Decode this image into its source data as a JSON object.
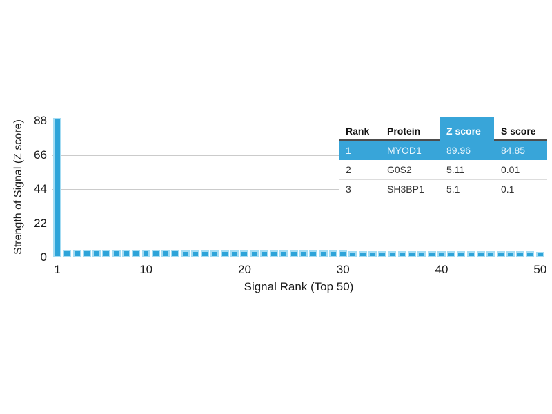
{
  "colors": {
    "accent_blue": "#38a5d9",
    "bar_fill": "#2ea4d9",
    "bar_edge": "#a4dcf3",
    "gridline": "#cbcbcb",
    "header_underline": "#4d4d4d",
    "row_divider": "#dddddd",
    "highlight_text": "#e8f5fc"
  },
  "chart_data": {
    "type": "bar",
    "title": "",
    "xlabel": "Signal Rank (Top 50)",
    "ylabel": "Strength of Signal (Z score)",
    "x_ticks": [
      1,
      10,
      20,
      30,
      40,
      50
    ],
    "y_ticks": [
      0,
      22,
      44,
      66,
      88
    ],
    "ylim": [
      0,
      90
    ],
    "grid": "horizontal",
    "legend": "none",
    "num_bars": 50,
    "values": [
      89.96,
      5.11,
      5.1,
      4.9,
      4.88,
      4.85,
      4.82,
      4.8,
      4.78,
      4.75,
      4.72,
      4.7,
      4.68,
      4.65,
      4.62,
      4.6,
      4.58,
      4.55,
      4.52,
      4.5,
      4.48,
      4.45,
      4.42,
      4.4,
      4.38,
      4.35,
      4.32,
      4.3,
      4.28,
      4.25,
      4.22,
      4.2,
      4.18,
      4.15,
      4.12,
      4.1,
      4.08,
      4.05,
      4.02,
      4.0,
      3.98,
      3.95,
      3.92,
      3.9,
      3.88,
      3.85,
      3.82,
      3.8,
      3.78,
      3.75
    ]
  },
  "table": {
    "headers": [
      "Rank",
      "Protein",
      "Z score",
      "S score"
    ],
    "highlighted_header": "Z score",
    "rows": [
      {
        "rank": "1",
        "protein": "MYOD1",
        "z_score": "89.96",
        "s_score": "84.85",
        "highlighted": true
      },
      {
        "rank": "2",
        "protein": "G0S2",
        "z_score": "5.11",
        "s_score": "0.01",
        "highlighted": false
      },
      {
        "rank": "3",
        "protein": "SH3BP1",
        "z_score": "5.1",
        "s_score": "0.1",
        "highlighted": false
      }
    ]
  }
}
